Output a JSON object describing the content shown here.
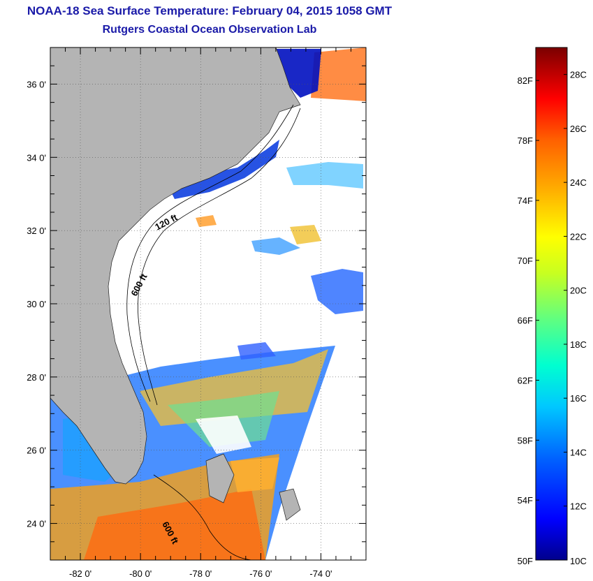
{
  "title_line1": "NOAA-18 Sea Surface Temperature:  February 04, 2015 1058 GMT",
  "title_line2": "Rutgers Coastal Ocean Observation Lab",
  "map": {
    "lat_labels": [
      "36 0'",
      "34 0'",
      "32 0'",
      "30 0'",
      "28 0'",
      "26 0'",
      "24 0'"
    ],
    "lat_values": [
      36,
      34,
      32,
      30,
      28,
      26,
      24
    ],
    "lon_labels": [
      "-82 0'",
      "-80 0'",
      "-78 0'",
      "-76 0'",
      "-74 0'"
    ],
    "lon_values": [
      -82,
      -80,
      -78,
      -76,
      -74
    ],
    "lon_range": [
      -83,
      -72.5
    ],
    "lat_range": [
      23,
      37
    ],
    "contour_labels": [
      "120 ft",
      "600 ft",
      "600 ft"
    ],
    "land_color": "#b4b4b4",
    "cloud_color": "#ffffff"
  },
  "colorbar": {
    "fahrenheit_labels": [
      "82F",
      "78F",
      "74F",
      "70F",
      "66F",
      "62F",
      "58F",
      "54F",
      "50F"
    ],
    "celsius_labels": [
      "28C",
      "26C",
      "24C",
      "22C",
      "20C",
      "18C",
      "16C",
      "14C",
      "12C",
      "10C"
    ],
    "range_c": [
      10,
      29
    ],
    "colors": [
      "#00008c",
      "#0000ff",
      "#0064ff",
      "#00c8ff",
      "#00ffd0",
      "#60ff80",
      "#c8ff20",
      "#ffff00",
      "#ffb000",
      "#ff6000",
      "#ff0000",
      "#b00000",
      "#7a0000"
    ]
  }
}
